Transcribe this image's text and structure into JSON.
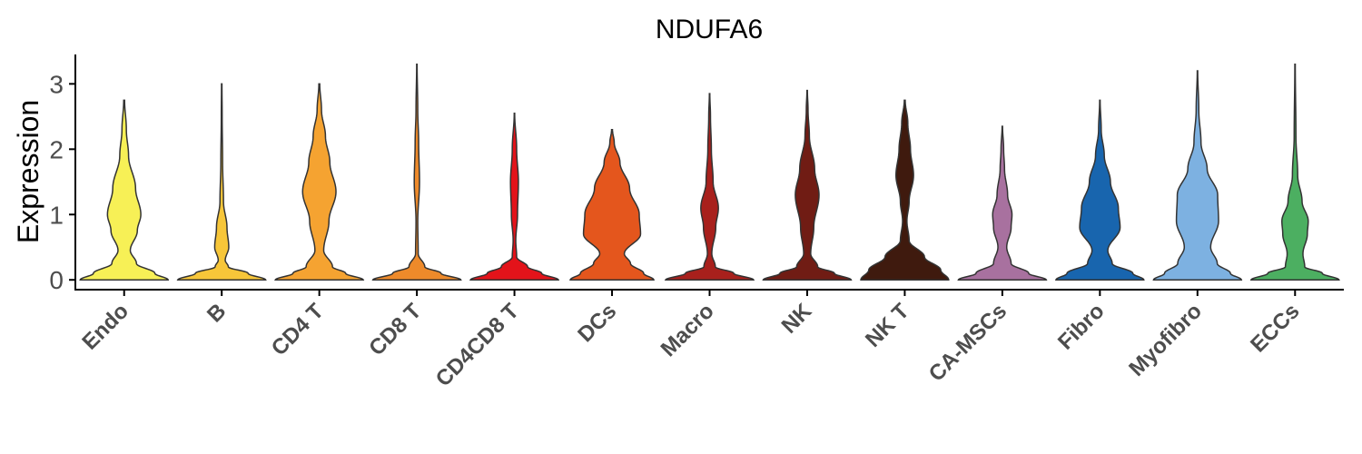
{
  "chart_data": {
    "type": "violin",
    "title": "NDUFA6",
    "xlabel": "",
    "ylabel": "Expression",
    "ylim": [
      -0.15,
      3.45
    ],
    "yticks": [
      0,
      1,
      2,
      3
    ],
    "grid": false,
    "legend": "none",
    "categories": [
      "Endo",
      "B",
      "CD4 T",
      "CD8 T",
      "CD4CD8 T",
      "DCs",
      "Macro",
      "NK",
      "NK T",
      "CA-MSCs",
      "Fibro",
      "Myofibro",
      "ECCs"
    ],
    "series": [
      {
        "category": "Endo",
        "color": "#F7F056",
        "max": 2.75,
        "profile": [
          [
            0,
            1.0
          ],
          [
            0.1,
            0.7
          ],
          [
            0.25,
            0.28
          ],
          [
            0.45,
            0.14
          ],
          [
            0.75,
            0.3
          ],
          [
            1.0,
            0.38
          ],
          [
            1.4,
            0.26
          ],
          [
            1.9,
            0.1
          ],
          [
            2.3,
            0.05
          ],
          [
            2.75,
            0.01
          ]
        ]
      },
      {
        "category": "B",
        "color": "#F7C639",
        "max": 3.0,
        "profile": [
          [
            0,
            1.0
          ],
          [
            0.1,
            0.6
          ],
          [
            0.2,
            0.15
          ],
          [
            0.3,
            0.08
          ],
          [
            0.5,
            0.16
          ],
          [
            0.8,
            0.12
          ],
          [
            1.2,
            0.04
          ],
          [
            1.8,
            0.02
          ],
          [
            2.5,
            0.01
          ],
          [
            3.0,
            0.005
          ]
        ]
      },
      {
        "category": "CD4 T",
        "color": "#F5A331",
        "max": 3.0,
        "profile": [
          [
            0,
            1.0
          ],
          [
            0.1,
            0.6
          ],
          [
            0.2,
            0.3
          ],
          [
            0.45,
            0.1
          ],
          [
            0.9,
            0.22
          ],
          [
            1.35,
            0.38
          ],
          [
            1.8,
            0.24
          ],
          [
            2.2,
            0.14
          ],
          [
            2.6,
            0.05
          ],
          [
            3.0,
            0.01
          ]
        ]
      },
      {
        "category": "CD8 T",
        "color": "#EE8A2A",
        "max": 3.3,
        "profile": [
          [
            0,
            1.0
          ],
          [
            0.1,
            0.55
          ],
          [
            0.2,
            0.18
          ],
          [
            0.4,
            0.03
          ],
          [
            0.9,
            0.02
          ],
          [
            1.5,
            0.06
          ],
          [
            2.1,
            0.04
          ],
          [
            2.6,
            0.02
          ],
          [
            3.3,
            0.005
          ]
        ]
      },
      {
        "category": "CD4CD8 T",
        "color": "#E3131A",
        "max": 2.55,
        "profile": [
          [
            0,
            1.0
          ],
          [
            0.1,
            0.62
          ],
          [
            0.2,
            0.3
          ],
          [
            0.35,
            0.05
          ],
          [
            0.6,
            0.03
          ],
          [
            1.0,
            0.07
          ],
          [
            1.5,
            0.09
          ],
          [
            2.0,
            0.05
          ],
          [
            2.55,
            0.005
          ]
        ]
      },
      {
        "category": "DCs",
        "color": "#E4561D",
        "max": 2.3,
        "profile": [
          [
            0,
            0.95
          ],
          [
            0.1,
            0.72
          ],
          [
            0.25,
            0.42
          ],
          [
            0.4,
            0.28
          ],
          [
            0.7,
            0.65
          ],
          [
            1.0,
            0.62
          ],
          [
            1.4,
            0.4
          ],
          [
            1.8,
            0.18
          ],
          [
            2.1,
            0.05
          ],
          [
            2.3,
            0.01
          ]
        ]
      },
      {
        "category": "Macro",
        "color": "#A8201C",
        "max": 2.85,
        "profile": [
          [
            0,
            1.0
          ],
          [
            0.1,
            0.55
          ],
          [
            0.2,
            0.13
          ],
          [
            0.4,
            0.05
          ],
          [
            0.8,
            0.14
          ],
          [
            1.1,
            0.2
          ],
          [
            1.5,
            0.08
          ],
          [
            2.0,
            0.04
          ],
          [
            2.5,
            0.02
          ],
          [
            2.85,
            0.005
          ]
        ]
      },
      {
        "category": "NK",
        "color": "#701C14",
        "max": 2.9,
        "profile": [
          [
            0,
            1.0
          ],
          [
            0.1,
            0.62
          ],
          [
            0.2,
            0.24
          ],
          [
            0.4,
            0.08
          ],
          [
            0.8,
            0.15
          ],
          [
            1.3,
            0.27
          ],
          [
            1.7,
            0.17
          ],
          [
            2.2,
            0.05
          ],
          [
            2.6,
            0.02
          ],
          [
            2.9,
            0.005
          ]
        ]
      },
      {
        "category": "NK T",
        "color": "#3F1A0E",
        "max": 2.75,
        "profile": [
          [
            0,
            1.0
          ],
          [
            0.15,
            0.82
          ],
          [
            0.35,
            0.45
          ],
          [
            0.6,
            0.1
          ],
          [
            0.9,
            0.05
          ],
          [
            1.2,
            0.1
          ],
          [
            1.6,
            0.2
          ],
          [
            2.0,
            0.13
          ],
          [
            2.4,
            0.07
          ],
          [
            2.75,
            0.01
          ]
        ]
      },
      {
        "category": "CA-MSCs",
        "color": "#A8719F",
        "max": 2.35,
        "profile": [
          [
            0,
            1.0
          ],
          [
            0.1,
            0.6
          ],
          [
            0.25,
            0.2
          ],
          [
            0.5,
            0.1
          ],
          [
            0.8,
            0.2
          ],
          [
            1.0,
            0.22
          ],
          [
            1.3,
            0.12
          ],
          [
            1.7,
            0.05
          ],
          [
            2.0,
            0.03
          ],
          [
            2.35,
            0.005
          ]
        ]
      },
      {
        "category": "Fibro",
        "color": "#1865AE",
        "max": 2.75,
        "profile": [
          [
            0,
            1.0
          ],
          [
            0.1,
            0.75
          ],
          [
            0.25,
            0.28
          ],
          [
            0.45,
            0.18
          ],
          [
            0.8,
            0.46
          ],
          [
            1.1,
            0.42
          ],
          [
            1.5,
            0.24
          ],
          [
            1.9,
            0.1
          ],
          [
            2.3,
            0.03
          ],
          [
            2.75,
            0.005
          ]
        ]
      },
      {
        "category": "Myofibro",
        "color": "#7DB1E1",
        "max": 3.2,
        "profile": [
          [
            0,
            1.0
          ],
          [
            0.1,
            0.75
          ],
          [
            0.25,
            0.45
          ],
          [
            0.5,
            0.3
          ],
          [
            0.9,
            0.48
          ],
          [
            1.3,
            0.46
          ],
          [
            1.7,
            0.22
          ],
          [
            2.1,
            0.08
          ],
          [
            2.6,
            0.03
          ],
          [
            3.2,
            0.005
          ]
        ]
      },
      {
        "category": "ECCs",
        "color": "#4CAF61",
        "max": 3.3,
        "profile": [
          [
            0,
            1.0
          ],
          [
            0.1,
            0.62
          ],
          [
            0.2,
            0.22
          ],
          [
            0.4,
            0.18
          ],
          [
            0.7,
            0.28
          ],
          [
            0.9,
            0.3
          ],
          [
            1.2,
            0.16
          ],
          [
            1.6,
            0.06
          ],
          [
            2.2,
            0.02
          ],
          [
            3.3,
            0.005
          ]
        ]
      }
    ]
  }
}
